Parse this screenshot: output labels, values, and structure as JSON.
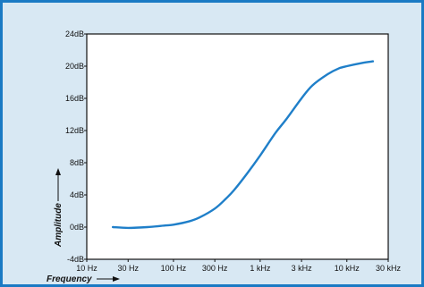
{
  "colors": {
    "frame": "#1a7ac4",
    "background": "#d8e8f3",
    "plot_area": "#ffffff",
    "curve": "#1f7fc9",
    "axis": "#111111"
  },
  "chart_data": {
    "type": "line",
    "title": "",
    "xlabel": "Frequency",
    "ylabel": "Amplitude",
    "x_scale": "log",
    "xlim": [
      10,
      30000
    ],
    "ylim": [
      -4,
      24
    ],
    "grid": false,
    "x_ticks": [
      {
        "value": 10,
        "label": "10 Hz"
      },
      {
        "value": 30,
        "label": "30 Hz"
      },
      {
        "value": 100,
        "label": "100 Hz"
      },
      {
        "value": 300,
        "label": "300 Hz"
      },
      {
        "value": 1000,
        "label": "1 kHz"
      },
      {
        "value": 3000,
        "label": "3 kHz"
      },
      {
        "value": 10000,
        "label": "10 kHz"
      },
      {
        "value": 30000,
        "label": "30 kHz"
      }
    ],
    "y_ticks": [
      {
        "value": -4,
        "label": "-4dB"
      },
      {
        "value": 0,
        "label": "0dB"
      },
      {
        "value": 4,
        "label": "4dB"
      },
      {
        "value": 8,
        "label": "8dB"
      },
      {
        "value": 12,
        "label": "12dB"
      },
      {
        "value": 16,
        "label": "16dB"
      },
      {
        "value": 20,
        "label": "20dB"
      },
      {
        "value": 24,
        "label": "24dB"
      }
    ],
    "series": [
      {
        "x": [
          20,
          30,
          50,
          80,
          100,
          150,
          200,
          300,
          400,
          500,
          700,
          1000,
          1500,
          2000,
          3000,
          4000,
          6000,
          8000,
          10000,
          15000,
          20000
        ],
        "y": [
          0.0,
          -0.1,
          0.0,
          0.2,
          0.3,
          0.7,
          1.2,
          2.3,
          3.5,
          4.6,
          6.6,
          8.9,
          11.7,
          13.4,
          16.0,
          17.6,
          19.0,
          19.7,
          20.0,
          20.4,
          20.6
        ]
      }
    ]
  }
}
